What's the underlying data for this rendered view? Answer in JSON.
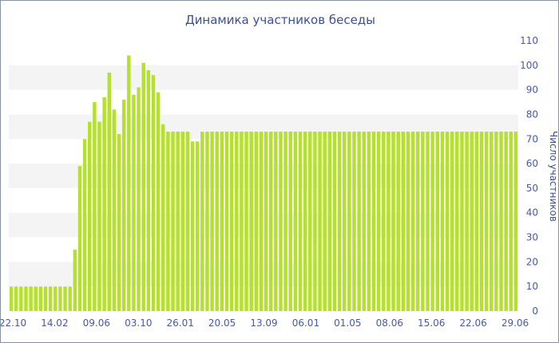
{
  "chart_data": {
    "type": "bar",
    "title": "Динамика участников беседы",
    "ylabel": "Число участников",
    "xlabel": "",
    "ylim": [
      0,
      110
    ],
    "yticks": [
      0,
      10,
      20,
      30,
      40,
      50,
      60,
      70,
      80,
      90,
      100,
      110
    ],
    "y_axis_side": "right",
    "grid": "alternating horizontal bands",
    "x_tick_labels": [
      "22.10",
      "14.02",
      "09.06",
      "03.10",
      "26.01",
      "20.05",
      "13.09",
      "06.01",
      "01.05",
      "08.06",
      "15.06",
      "22.06",
      "29.06"
    ],
    "values": [
      10,
      10,
      10,
      10,
      10,
      10,
      10,
      10,
      10,
      10,
      10,
      10,
      10,
      25,
      59,
      70,
      77,
      85,
      77,
      87,
      97,
      82,
      72,
      86,
      104,
      88,
      91,
      101,
      98,
      96,
      89,
      76,
      73,
      73,
      73,
      73,
      73,
      69,
      69,
      73,
      73,
      73,
      73,
      73,
      73,
      73,
      73,
      73,
      73,
      73,
      73,
      73,
      73,
      73,
      73,
      73,
      73,
      73,
      73,
      73,
      73,
      73,
      73,
      73,
      73,
      73,
      73,
      73,
      73,
      73,
      73,
      73,
      73,
      73,
      73,
      73,
      73,
      73,
      73,
      73,
      73,
      73,
      73,
      73,
      73,
      73,
      73,
      73,
      73,
      73,
      73,
      73,
      73,
      73,
      73,
      73,
      73,
      73,
      73,
      73,
      73,
      73,
      73,
      73
    ],
    "bar_color": "#b5e02b",
    "band_color": "#f4f4f4",
    "text_color": "#4a5aa0"
  }
}
